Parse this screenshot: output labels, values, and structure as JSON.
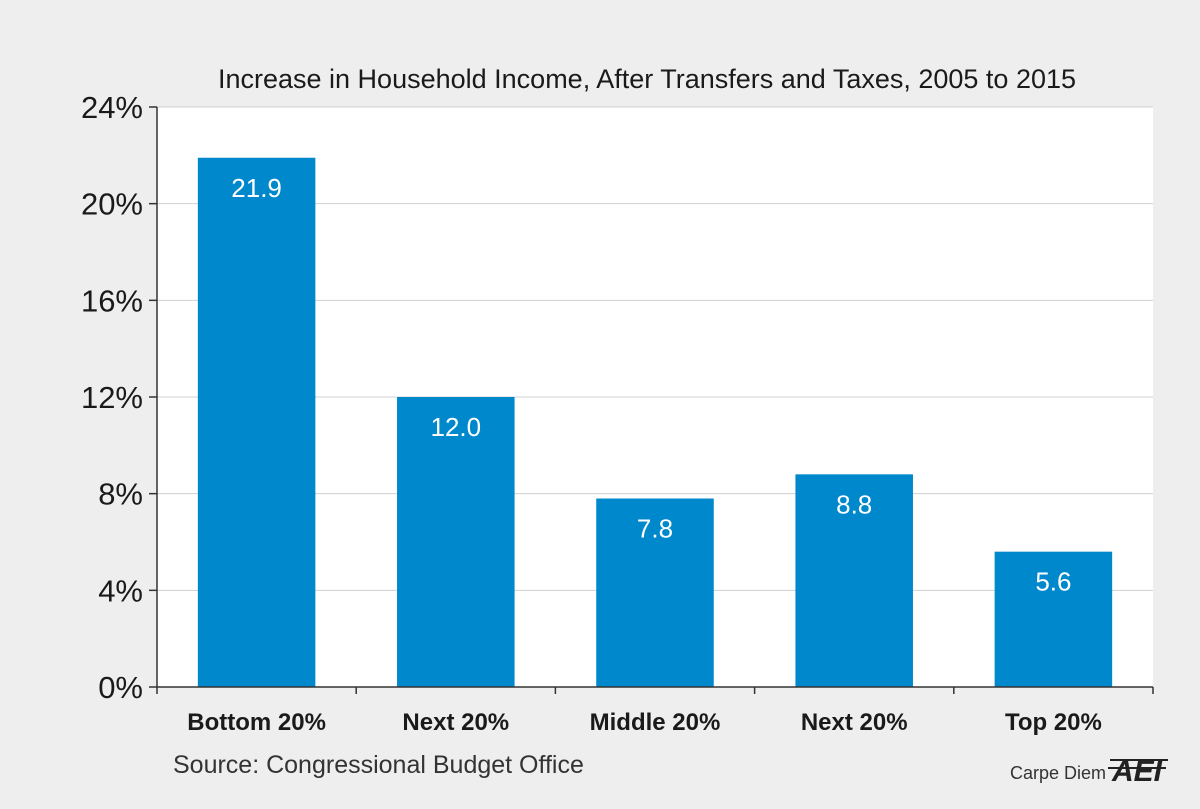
{
  "chart_data": {
    "type": "bar",
    "title": "Increase in Household Income, After Transfers and Taxes, 2005 to 2015",
    "categories": [
      "Bottom 20%",
      "Next 20%",
      "Middle 20%",
      "Next 20%",
      "Top 20%"
    ],
    "values": [
      21.9,
      12.0,
      7.8,
      8.8,
      5.6
    ],
    "value_labels": [
      "21.9",
      "12.0",
      "7.8",
      "8.8",
      "5.6"
    ],
    "ylim": [
      0,
      24
    ],
    "yticks": [
      0,
      4,
      8,
      12,
      16,
      20,
      24
    ],
    "ytick_labels": [
      "0%",
      "4%",
      "8%",
      "12%",
      "16%",
      "20%",
      "24%"
    ],
    "xlabel": "",
    "ylabel": "",
    "grid": true,
    "bar_color": "#0088cc"
  },
  "footer": {
    "source": "Source: Congressional Budget Office",
    "brand": "Carpe Diem",
    "logo_text": "AEI"
  },
  "colors": {
    "background": "#eeeeee",
    "plot_background": "#ffffff",
    "grid": "#d0d0d0",
    "axis": "#333333"
  }
}
